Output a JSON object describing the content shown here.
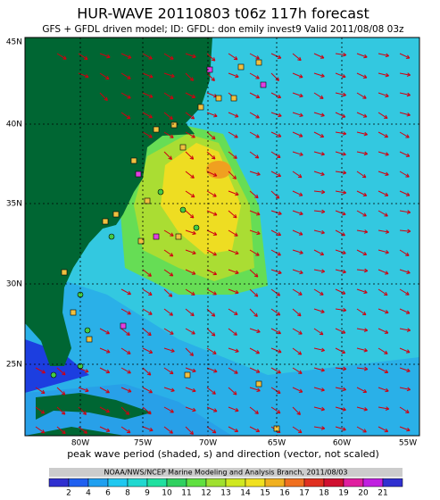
{
  "header": {
    "title": "HUR-WAVE 20110803 t06z  117h forecast",
    "subtitle": "GFS + GFDL driven model; ID: GFDL: don emily invest9 Valid 2011/08/08 03z"
  },
  "map": {
    "lat_labels": [
      "45N",
      "40N",
      "35N",
      "30N",
      "25N"
    ],
    "lon_labels": [
      "80W",
      "75W",
      "70W",
      "65W",
      "60W",
      "55W"
    ]
  },
  "caption": "peak wave period (shaded, s) and direction (vector, not scaled)",
  "credit": "NOAA/NWS/NCEP Marine Modeling and Analysis Branch, 2011/08/03",
  "colorbar": {
    "labels": [
      "2",
      "4",
      "6",
      "8",
      "9",
      "10",
      "11",
      "12",
      "13",
      "14",
      "15",
      "16",
      "17",
      "18",
      "19",
      "20",
      "21"
    ]
  }
}
